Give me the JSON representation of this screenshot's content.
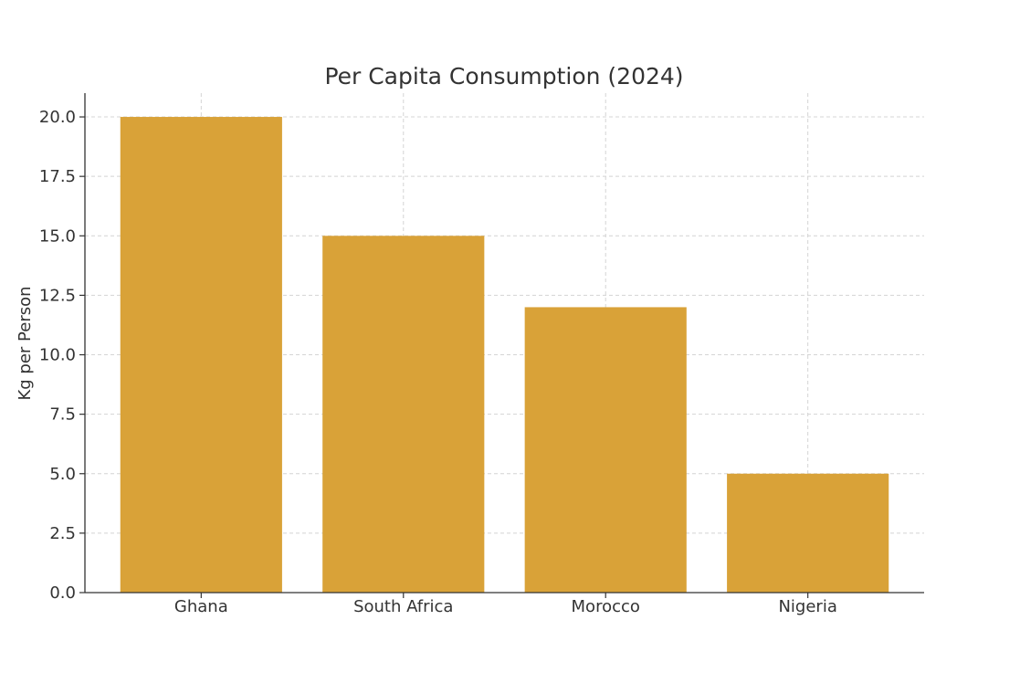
{
  "chart_data": {
    "type": "bar",
    "title": "Per Capita Consumption (2024)",
    "xlabel": "",
    "ylabel": "Kg per Person",
    "categories": [
      "Ghana",
      "South Africa",
      "Morocco",
      "Nigeria"
    ],
    "values": [
      20,
      15,
      12,
      5
    ],
    "ylim": [
      0,
      21
    ],
    "yticks": [
      0,
      2.5,
      5,
      7.5,
      10,
      12.5,
      15,
      17.5,
      20
    ],
    "grid": true,
    "bar_color": "#d9a238"
  }
}
